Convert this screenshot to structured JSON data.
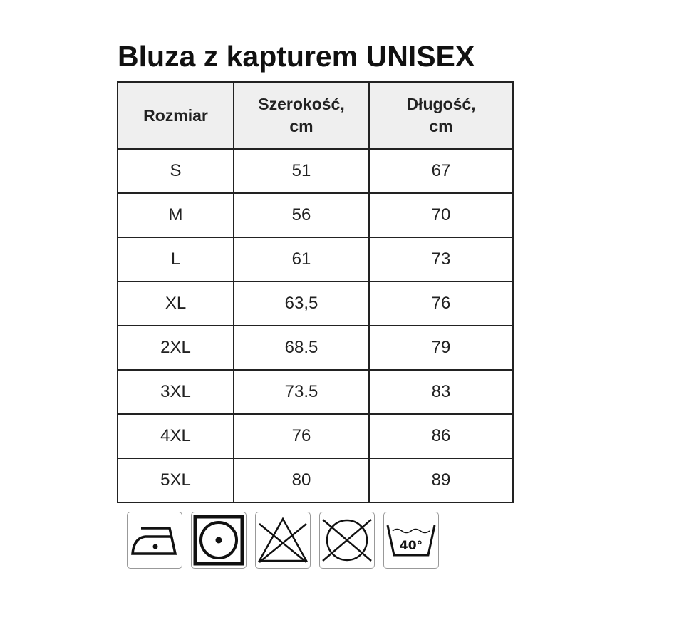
{
  "title": "Bluza z kapturem UNISEX",
  "table": {
    "headers": [
      "Rozmiar",
      "Szerokość, cm",
      "Długość, cm"
    ],
    "rows": [
      [
        "S",
        "51",
        "67"
      ],
      [
        "M",
        "56",
        "70"
      ],
      [
        "L",
        "61",
        "73"
      ],
      [
        "XL",
        "63,5",
        "76"
      ],
      [
        "2XL",
        "68.5",
        "79"
      ],
      [
        "3XL",
        "73.5",
        "83"
      ],
      [
        "4XL",
        "76",
        "86"
      ],
      [
        "5XL",
        "80",
        "89"
      ]
    ]
  },
  "care_icons": [
    {
      "name": "iron-low-temperature-icon"
    },
    {
      "name": "tumble-dry-low-icon"
    },
    {
      "name": "do-not-bleach-icon"
    },
    {
      "name": "do-not-dry-clean-icon"
    },
    {
      "name": "wash-40-icon",
      "label": "40°"
    }
  ]
}
